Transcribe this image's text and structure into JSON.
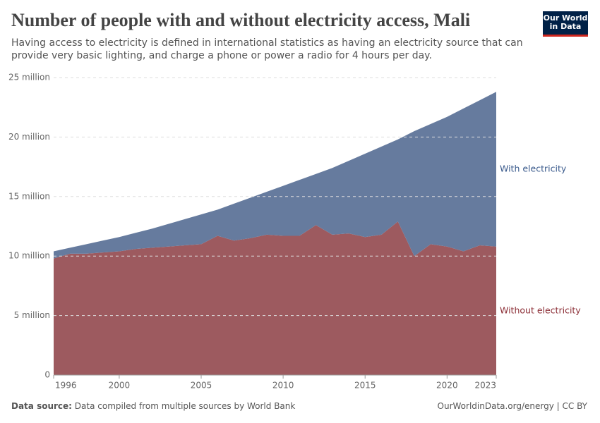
{
  "header": {
    "title": "Number of people with and without electricity access, Mali",
    "subtitle": "Having access to electricity is defined in international statistics as having an electricity source that can provide very basic lighting, and charge a phone or power a radio for 4 hours per day.",
    "logo": "Our World in Data"
  },
  "chart_data": {
    "type": "stacked_area",
    "x": [
      1996,
      1997,
      1998,
      1999,
      2000,
      2001,
      2002,
      2003,
      2004,
      2005,
      2006,
      2007,
      2008,
      2009,
      2010,
      2011,
      2012,
      2013,
      2014,
      2015,
      2016,
      2017,
      2018,
      2019,
      2020,
      2021,
      2022,
      2023
    ],
    "series": [
      {
        "name": "Without electricity",
        "color": "#9d5a5f",
        "label_color": "#8c2f37",
        "values": [
          9800000,
          10200000,
          10200000,
          10300000,
          10400000,
          10600000,
          10700000,
          10800000,
          10900000,
          11000000,
          11700000,
          11300000,
          11500000,
          11800000,
          11700000,
          11700000,
          12600000,
          11800000,
          11900000,
          11600000,
          11800000,
          12900000,
          10000000,
          11000000,
          10800000,
          10400000,
          10900000,
          10800000
        ]
      },
      {
        "name": "With electricity",
        "color": "#667b9e",
        "label_color": "#3a5a8c",
        "values": [
          600000,
          500000,
          800000,
          1000000,
          1200000,
          1350000,
          1600000,
          1900000,
          2200000,
          2500000,
          2200000,
          3100000,
          3400000,
          3600000,
          4200000,
          4700000,
          4300000,
          5600000,
          6100000,
          7000000,
          7400000,
          6900000,
          10500000,
          10100000,
          10900000,
          12000000,
          12200000,
          13000000
        ]
      }
    ],
    "xlim": [
      1996,
      2023
    ],
    "xticks": [
      1996,
      2000,
      2005,
      2010,
      2015,
      2020,
      2023
    ],
    "ylim": [
      0,
      25000000
    ],
    "yticks": [
      0,
      {
        "value": 5000000,
        "label": "5 million"
      },
      {
        "value": 10000000,
        "label": "10 million"
      },
      {
        "value": 15000000,
        "label": "15 million"
      },
      {
        "value": 20000000,
        "label": "20 million"
      },
      {
        "value": 25000000,
        "label": "25 million"
      }
    ],
    "grid": true
  },
  "footer": {
    "source_label": "Data source:",
    "source_text": "Data compiled from multiple sources by World Bank",
    "url": "OurWorldinData.org/energy | CC BY"
  }
}
